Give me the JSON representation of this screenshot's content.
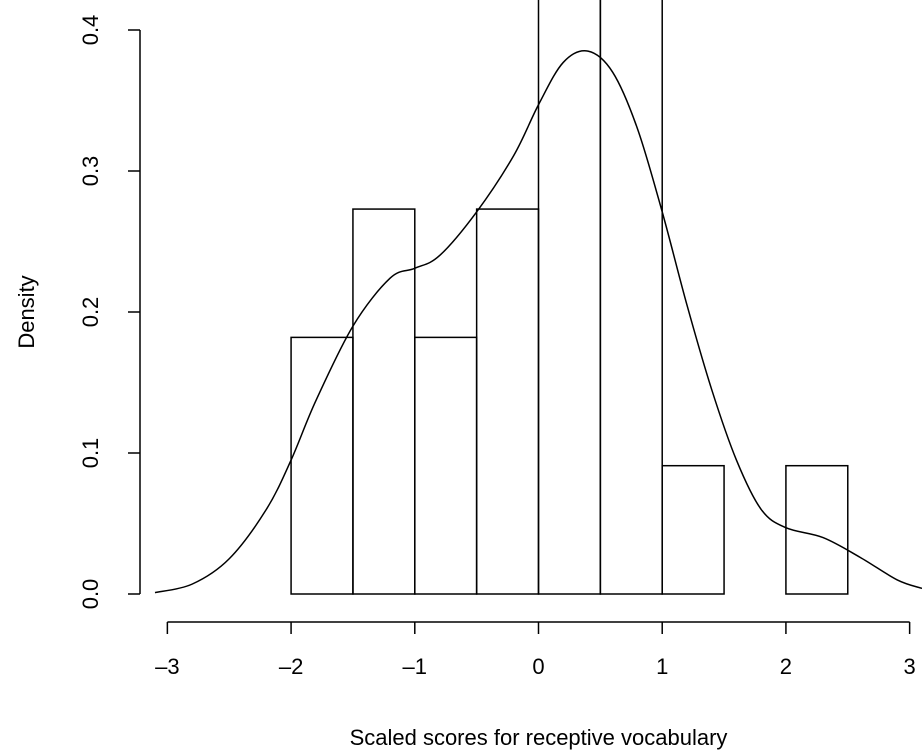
{
  "chart_data": {
    "type": "bar",
    "title": "",
    "xlabel": "Scaled scores for receptive vocabulary",
    "ylabel": "Density",
    "xlim": [
      -3.1,
      3.1
    ],
    "ylim": [
      0,
      0.4
    ],
    "grid": false,
    "x_ticks": [
      -3,
      -2,
      -1,
      0,
      1,
      2,
      3
    ],
    "x_tick_labels": [
      "–3",
      "–2",
      "–1",
      "0",
      "1",
      "2",
      "3"
    ],
    "y_ticks": [
      0,
      0.1,
      0.2,
      0.3,
      0.4
    ],
    "y_tick_labels": [
      "0.0",
      "0.1",
      "0.2",
      "0.3",
      "0.4"
    ],
    "bins": [
      {
        "from": -2.0,
        "to": -1.5,
        "density": 0.182
      },
      {
        "from": -1.5,
        "to": -1.0,
        "density": 0.273
      },
      {
        "from": -1.0,
        "to": -0.5,
        "density": 0.182
      },
      {
        "from": -0.5,
        "to": 0.0,
        "density": 0.273
      },
      {
        "from": 0.0,
        "to": 0.5,
        "density": 0.455
      },
      {
        "from": 0.5,
        "to": 1.0,
        "density": 0.455
      },
      {
        "from": 1.0,
        "to": 1.5,
        "density": 0.091
      },
      {
        "from": 1.5,
        "to": 2.0,
        "density": 0.0
      },
      {
        "from": 2.0,
        "to": 2.5,
        "density": 0.091
      }
    ],
    "series": [
      {
        "type": "line",
        "x": [
          -3.1,
          -2.8,
          -2.5,
          -2.2,
          -2.0,
          -1.8,
          -1.5,
          -1.2,
          -1.0,
          -0.8,
          -0.5,
          -0.2,
          0.0,
          0.2,
          0.4,
          0.6,
          0.8,
          1.0,
          1.2,
          1.4,
          1.6,
          1.8,
          2.0,
          2.3,
          2.6,
          2.9,
          3.1
        ],
        "y": [
          0.001,
          0.007,
          0.025,
          0.06,
          0.095,
          0.137,
          0.19,
          0.224,
          0.231,
          0.24,
          0.271,
          0.311,
          0.347,
          0.377,
          0.385,
          0.37,
          0.33,
          0.271,
          0.205,
          0.145,
          0.095,
          0.06,
          0.047,
          0.04,
          0.026,
          0.01,
          0.004
        ]
      }
    ]
  }
}
